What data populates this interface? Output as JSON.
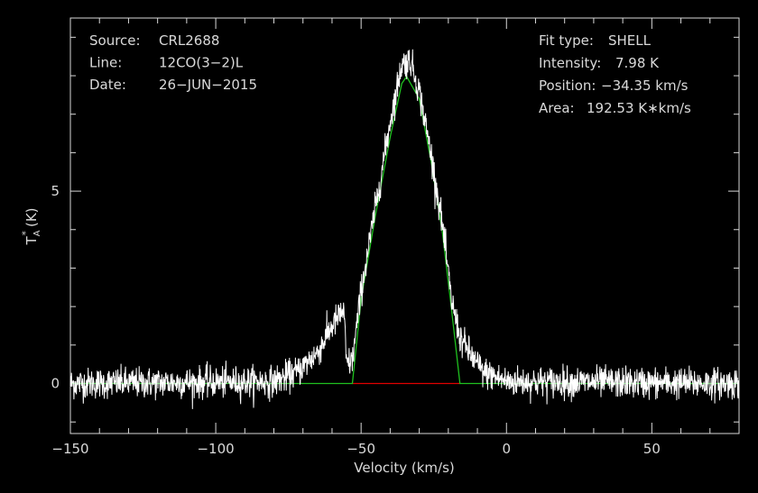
{
  "chart_data": {
    "type": "line",
    "xlabel": "Velocity (km/s)",
    "ylabel": "T",
    "ylabel_sub": "A",
    "ylabel_sup": "*",
    "ylabel_unit": "(K)",
    "xlim": [
      -150,
      80
    ],
    "ylim": [
      -1.3,
      9.5
    ],
    "x_ticks": [
      -150,
      -100,
      -50,
      0,
      50
    ],
    "x_tick_labels": [
      "−150",
      "−100",
      "−50",
      "0",
      "50"
    ],
    "y_ticks": [
      0,
      5
    ],
    "y_tick_labels": [
      "0",
      "5"
    ],
    "info_left": [
      {
        "key": "Source:",
        "value": "CRL2688"
      },
      {
        "key": "Line:",
        "value": "12CO(3−2)L"
      },
      {
        "key": "Date:",
        "value": "26−JUN−2015"
      }
    ],
    "info_right": [
      {
        "key": "Fit type:",
        "value": "SHELL"
      },
      {
        "key": "Intensity:",
        "value": "7.98 K"
      },
      {
        "key": "Position:",
        "value": "−34.35 km/s"
      },
      {
        "key": "Area:",
        "value": "192.53 K∗km/s"
      }
    ],
    "fit": {
      "type": "SHELL",
      "intensity_K": 7.98,
      "position_kms": -34.35,
      "area_Kkms": 192.53,
      "base_range_kms": [
        -53,
        -16
      ],
      "sample_points": [
        [
          -150,
          0
        ],
        [
          -53,
          0
        ],
        [
          -50,
          2.2
        ],
        [
          -45,
          4.4
        ],
        [
          -40,
          6.4
        ],
        [
          -36,
          7.8
        ],
        [
          -34.35,
          7.98
        ],
        [
          -30,
          7.4
        ],
        [
          -26,
          5.8
        ],
        [
          -22,
          3.9
        ],
        [
          -19,
          2.0
        ],
        [
          -16,
          0
        ],
        [
          80,
          0
        ]
      ]
    },
    "spectrum": {
      "description_points": [
        [
          -150,
          0
        ],
        [
          -80,
          0.05
        ],
        [
          -72,
          0.3
        ],
        [
          -65,
          0.8
        ],
        [
          -60,
          1.5
        ],
        [
          -56,
          1.9
        ],
        [
          -55,
          0.5
        ],
        [
          -53,
          0.6
        ],
        [
          -50,
          2.4
        ],
        [
          -45,
          4.6
        ],
        [
          -40,
          6.8
        ],
        [
          -36,
          8.3
        ],
        [
          -33,
          8.4
        ],
        [
          -30,
          7.6
        ],
        [
          -26,
          6.0
        ],
        [
          -22,
          4.1
        ],
        [
          -19,
          2.2
        ],
        [
          -16,
          1.2
        ],
        [
          -12,
          0.7
        ],
        [
          -8,
          0.3
        ],
        [
          0,
          0.05
        ],
        [
          80,
          0
        ]
      ],
      "noise_rms_K": 0.2
    },
    "colors": {
      "background": "#000000",
      "axes": "#d9d9d9",
      "spectrum": "#ffffff",
      "fit": "#1fc11f",
      "baseline": "#e00000"
    }
  }
}
